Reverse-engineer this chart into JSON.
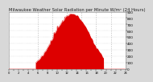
{
  "title": "Milwaukee Weather Solar Radiation per Minute W/m² (24 Hours)",
  "background_color": "#d8d8d8",
  "plot_bg_color": "#ffffff",
  "fill_color": "#dd0000",
  "grid_color": "#bbbbbb",
  "ylim": [
    0,
    900
  ],
  "xlim": [
    0,
    1440
  ],
  "num_points": 1440,
  "peak_minute": 780,
  "peak_value": 870,
  "daylight_start": 330,
  "daylight_end": 1170,
  "spread_minutes": 220,
  "vline_minutes": [
    360,
    540,
    720,
    900,
    1080,
    1260
  ],
  "title_fontsize": 3.8,
  "tick_fontsize": 3.0,
  "ytick_values": [
    0,
    100,
    200,
    300,
    400,
    500,
    600,
    700,
    800,
    900
  ],
  "xtick_minutes": [
    0,
    60,
    120,
    180,
    240,
    300,
    360,
    420,
    480,
    540,
    600,
    660,
    720,
    780,
    840,
    900,
    960,
    1020,
    1080,
    1140,
    1200,
    1260,
    1320,
    1380,
    1440
  ]
}
